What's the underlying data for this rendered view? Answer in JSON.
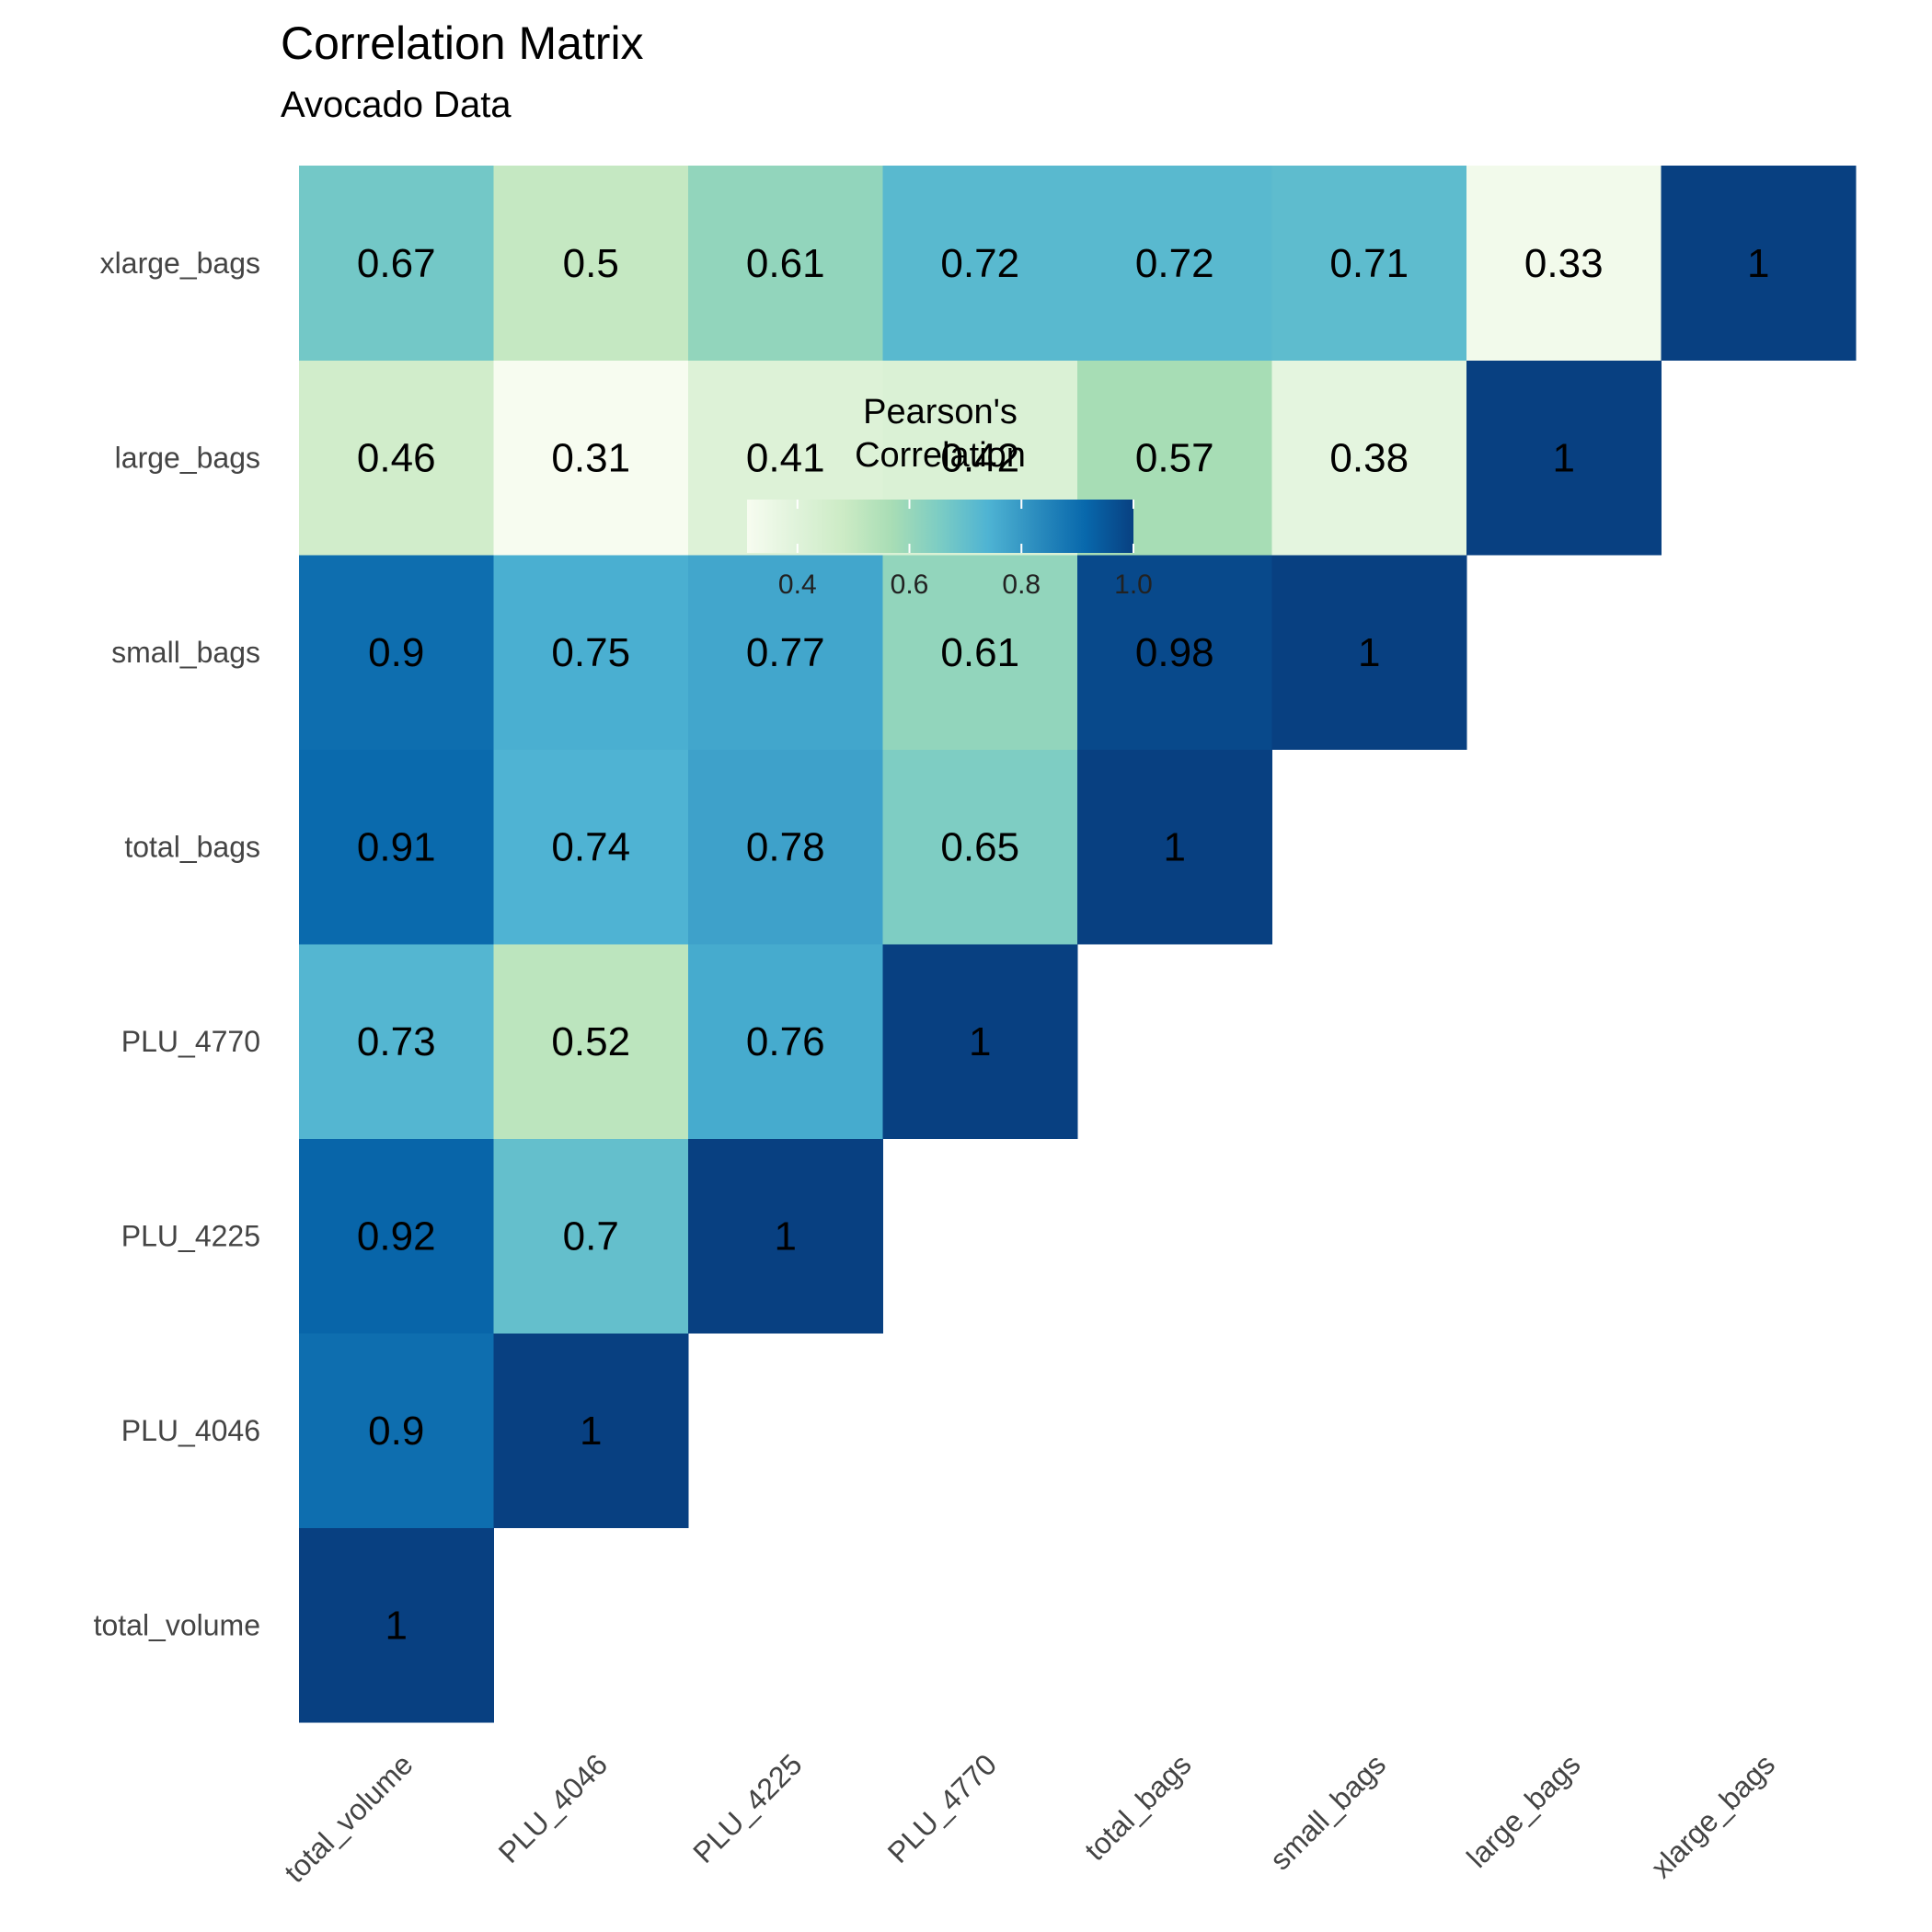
{
  "chart_data": {
    "type": "heatmap",
    "title": "Correlation Matrix",
    "subtitle": "Avocado Data",
    "variables": [
      "total_volume",
      "PLU_4046",
      "PLU_4225",
      "PLU_4770",
      "total_bags",
      "small_bags",
      "large_bags",
      "xlarge_bags"
    ],
    "matrix_lower_triangle": [
      [
        1
      ],
      [
        0.9,
        1
      ],
      [
        0.92,
        0.7,
        1
      ],
      [
        0.73,
        0.52,
        0.76,
        1
      ],
      [
        0.91,
        0.74,
        0.78,
        0.65,
        1
      ],
      [
        0.9,
        0.75,
        0.77,
        0.61,
        0.98,
        1
      ],
      [
        0.46,
        0.31,
        0.41,
        0.42,
        0.57,
        0.38,
        1
      ],
      [
        0.67,
        0.5,
        0.61,
        0.72,
        0.72,
        0.71,
        0.33,
        1
      ]
    ],
    "legend": {
      "title": "Pearson's\nCorrelation",
      "title_line1": "Pearson's",
      "title_line2": "Correlation",
      "ticks": [
        0.4,
        0.6,
        0.8,
        1.0
      ],
      "tick_labels": [
        "0.4",
        "0.6",
        "0.8",
        "1.0"
      ],
      "range": [
        0.31,
        1.0
      ],
      "position": "inside upper-left"
    },
    "colors": [
      "#f7fcf0",
      "#e0f3db",
      "#ccebc5",
      "#a8ddb5",
      "#7bccc4",
      "#4eb3d3",
      "#2b8cbe",
      "#0868ac",
      "#084081"
    ],
    "grid": false
  }
}
